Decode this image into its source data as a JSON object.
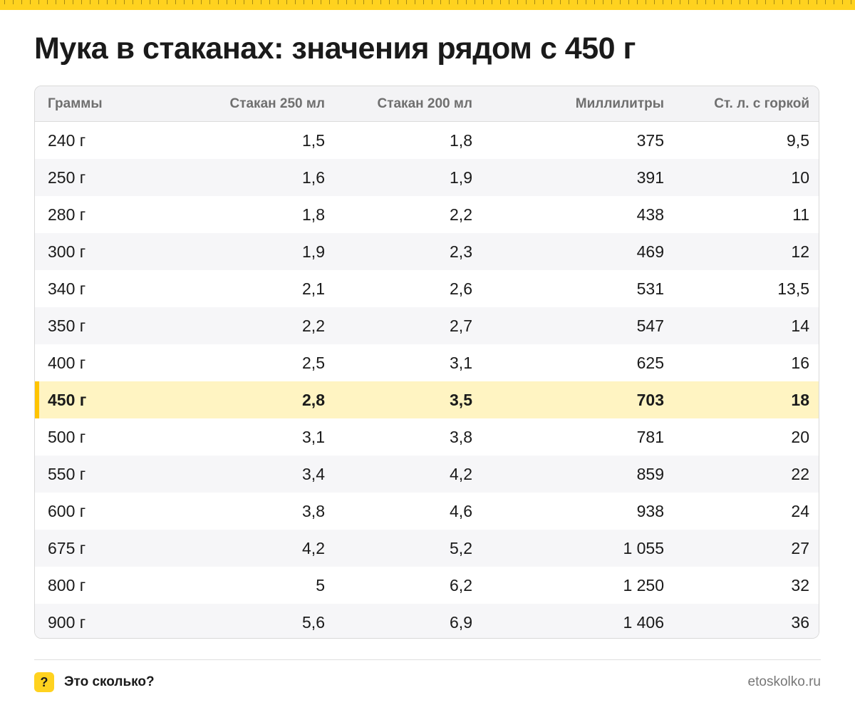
{
  "title": "Мука в стаканах: значения рядом с 450 г",
  "table": {
    "headers": [
      "Граммы",
      "Стакан 250 мл",
      "Стакан 200 мл",
      "Миллилитры",
      "Ст. л. с горкой"
    ],
    "highlight_row": 7,
    "rows": [
      [
        "240 г",
        "1,5",
        "1,8",
        "375",
        "9,5"
      ],
      [
        "250 г",
        "1,6",
        "1,9",
        "391",
        "10"
      ],
      [
        "280 г",
        "1,8",
        "2,2",
        "438",
        "11"
      ],
      [
        "300 г",
        "1,9",
        "2,3",
        "469",
        "12"
      ],
      [
        "340 г",
        "2,1",
        "2,6",
        "531",
        "13,5"
      ],
      [
        "350 г",
        "2,2",
        "2,7",
        "547",
        "14"
      ],
      [
        "400 г",
        "2,5",
        "3,1",
        "625",
        "16"
      ],
      [
        "450 г",
        "2,8",
        "3,5",
        "703",
        "18"
      ],
      [
        "500 г",
        "3,1",
        "3,8",
        "781",
        "20"
      ],
      [
        "550 г",
        "3,4",
        "4,2",
        "859",
        "22"
      ],
      [
        "600 г",
        "3,8",
        "4,6",
        "938",
        "24"
      ],
      [
        "675 г",
        "4,2",
        "5,2",
        "1 055",
        "27"
      ],
      [
        "800 г",
        "5",
        "6,2",
        "1 250",
        "32"
      ],
      [
        "900 г",
        "5,6",
        "6,9",
        "1 406",
        "36"
      ]
    ]
  },
  "footer": {
    "badge": "?",
    "brand": "Это сколько?",
    "site": "etoskolko.ru"
  },
  "colors": {
    "accent": "#ffd21f",
    "highlight_bg": "#fff4c2",
    "highlight_bar": "#ffc400"
  }
}
